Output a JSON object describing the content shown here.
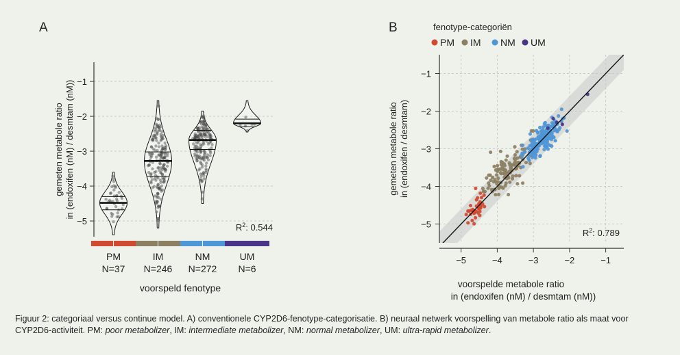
{
  "chart_data": [
    {
      "type": "violin",
      "panel_label": "A",
      "ylabel_lines": [
        "gemeten metabole ratio",
        "in (endoxifen (nM) / desmtam (nM))"
      ],
      "xlabel": "voorspeld fenotype",
      "ylim": [
        -5.45,
        -0.45
      ],
      "yticks": [
        -1,
        -2,
        -3,
        -4,
        -5
      ],
      "grid": "horizontal dashed",
      "annotation": {
        "prefix": "R",
        "sup": "2",
        "rest": ": 0.544"
      },
      "groups": [
        {
          "name": "PM",
          "n_label": "N=37",
          "n": 37,
          "color": "#d04a2f",
          "median": -4.48,
          "q1": -4.68,
          "q3": -4.3,
          "min": -5.4,
          "max": -3.6
        },
        {
          "name": "IM",
          "n_label": "N=246",
          "n": 246,
          "color": "#8c8063",
          "median": -3.28,
          "q1": -3.72,
          "q3": -3.02,
          "min": -5.2,
          "max": -1.55
        },
        {
          "name": "NM",
          "n_label": "N=272",
          "n": 272,
          "color": "#4f96d6",
          "median": -2.68,
          "q1": -2.95,
          "q3": -2.4,
          "min": -4.5,
          "max": -1.85
        },
        {
          "name": "UM",
          "n_label": "N=6",
          "n": 6,
          "color": "#4a3486",
          "median": -2.2,
          "q1": -2.3,
          "q3": -2.08,
          "min": -2.45,
          "max": -1.55
        }
      ]
    },
    {
      "type": "scatter",
      "panel_label": "B",
      "legend_title": "fenotype-categoriën",
      "legend_placement": "top",
      "xlabel_lines": [
        "voorspelde metabole ratio",
        "in (endoxifen (nM) / desmtam (nM))"
      ],
      "ylabel_lines": [
        "gemeten metabole ratio",
        "in (endoxifen / desmtam)"
      ],
      "xlim": [
        -5.6,
        -0.5
      ],
      "ylim": [
        -5.5,
        -0.5
      ],
      "xticks": [
        -5,
        -4,
        -3,
        -2,
        -1
      ],
      "yticks": [
        -1,
        -2,
        -3,
        -4,
        -5
      ],
      "grid": "dashed",
      "identity_line": true,
      "confidence_band": 0.4,
      "annotation": {
        "prefix": "R",
        "sup": "2",
        "rest": ": 0.789"
      },
      "series": [
        {
          "name": "PM",
          "color": "#d04a2f",
          "center_x": -4.55,
          "center_y": -4.55,
          "sd_x": 0.12,
          "sd_y": 0.3,
          "count": 37
        },
        {
          "name": "IM",
          "color": "#8c8063",
          "center_x": -3.7,
          "center_y": -3.55,
          "sd_x": 0.32,
          "sd_y": 0.42,
          "count": 120
        },
        {
          "name": "NM",
          "color": "#4f96d6",
          "center_x": -2.75,
          "center_y": -2.75,
          "sd_x": 0.25,
          "sd_y": 0.35,
          "count": 180
        },
        {
          "name": "UM",
          "color": "#4a3486",
          "points": [
            [
              -2.2,
              -2.35
            ],
            [
              -2.35,
              -2.3
            ],
            [
              -1.5,
              -1.55
            ],
            [
              -2.6,
              -2.45
            ],
            [
              -2.45,
              -2.2
            ]
          ]
        }
      ]
    }
  ],
  "caption": {
    "lead": "Figuur 2: categoriaal versus continue model. A) conventionele CYP2D6-fenotype-categorisatie. B) neuraal netwerk voorspelling van metabole ratio als maat voor CYP2D6-activiteit. PM: ",
    "pm_term": "poor metabolizer",
    "sep1": ", IM: ",
    "im_term": "intermediate metabolizer",
    "sep2": ", NM: ",
    "nm_term": "normal metabolizer",
    "sep3": ", UM: ",
    "um_term": "ultra-rapid metabolizer",
    "end": "."
  }
}
